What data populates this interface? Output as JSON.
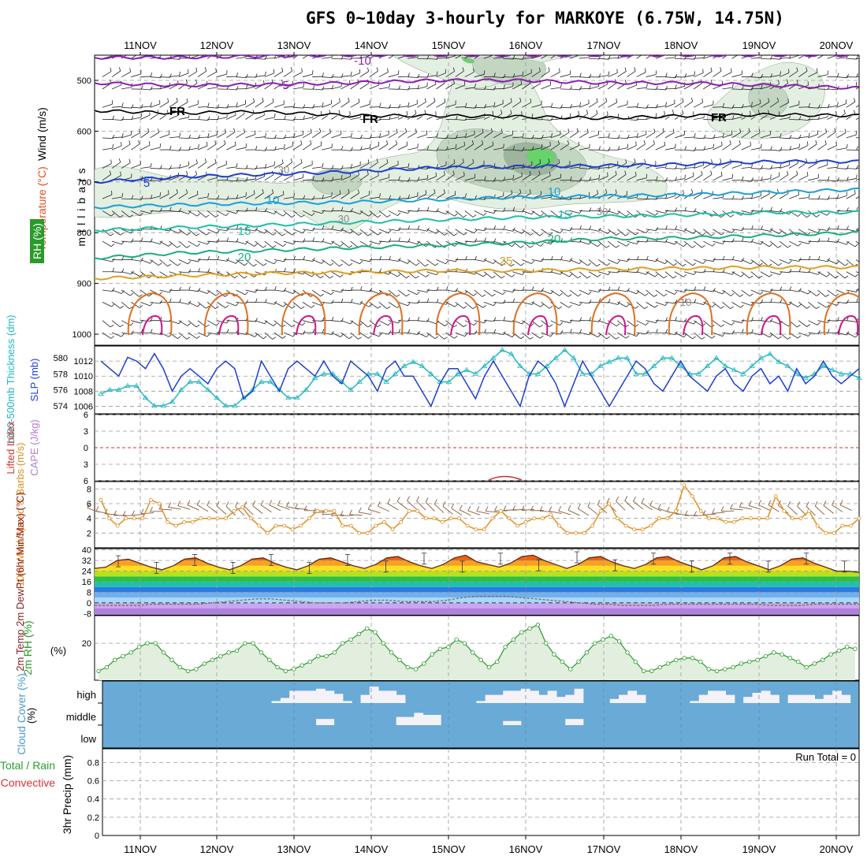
{
  "title": "GFS 0~10day 3-hourly for MARKOYE (6.75W, 14.75N)",
  "run_total_label": "Run Total = 0",
  "colors": {
    "rh_light": "#e3efe1",
    "rh_mid": "#c3d6c2",
    "rh_dark": "#9db49d",
    "rh_green": "#67d36a",
    "t_minus10": "#8a1fb3",
    "t_minus5": "#8a1fb3",
    "t_fr": "#000000",
    "t_5": "#1f3fcf",
    "t_10": "#1aa0d8",
    "t_15": "#1cc0a8",
    "t_20": "#19b07a",
    "t_25": "#e0a020",
    "t_30": "#e07020",
    "t_35": "#d0148a",
    "slp": "#1f3fcf",
    "thickness": "#20b8c0",
    "lifted": "#d03030",
    "cape": "#b080d0",
    "wind": "#e09020",
    "barb": "#8b5a3c",
    "rh2m": "#2a9a2a",
    "cloud_bg": "#6aaad6",
    "cloud_fill": "#f4f2f8"
  },
  "chart_data": [
    {
      "panel": "upper-air",
      "type": "heatmap",
      "ylabel": "millibars",
      "ylabel_parts": [
        "Wind (m/s)",
        "Temperature (°C)",
        "RH (%)"
      ],
      "y_ticks": [
        500,
        600,
        700,
        800,
        900,
        1000
      ],
      "ylim": [
        450,
        1000
      ],
      "x_ticks": [
        "11NOV",
        "12NOV",
        "13NOV",
        "14NOV",
        "15NOV",
        "16NOV",
        "17NOV",
        "18NOV",
        "19NOV",
        "20NOV"
      ],
      "contour_labels": [
        "-10",
        "-5",
        "FR",
        "FR",
        "FR",
        "5",
        "10",
        "10",
        "15",
        "15",
        "20",
        "20",
        "25",
        "30",
        "30",
        "30",
        "10"
      ],
      "isotherms": [
        {
          "name": "-10",
          "level": [
            455,
            455,
            452,
            450,
            450,
            450,
            450,
            450,
            450,
            450
          ]
        },
        {
          "name": "-5",
          "level": [
            505,
            510,
            508,
            505,
            500,
            500,
            505,
            505,
            510,
            515
          ]
        },
        {
          "name": "FR",
          "level": [
            560,
            565,
            562,
            570,
            570,
            572,
            575,
            570,
            568,
            570
          ]
        },
        {
          "name": "5",
          "level": [
            700,
            690,
            685,
            680,
            672,
            670,
            668,
            665,
            660,
            660
          ]
        },
        {
          "name": "10",
          "level": [
            750,
            745,
            742,
            740,
            735,
            730,
            728,
            725,
            720,
            715
          ]
        },
        {
          "name": "15",
          "level": [
            795,
            790,
            785,
            780,
            775,
            770,
            768,
            765,
            760,
            760
          ]
        },
        {
          "name": "20",
          "level": [
            850,
            840,
            835,
            830,
            825,
            820,
            812,
            810,
            805,
            800
          ]
        },
        {
          "name": "25",
          "level": [
            890,
            885,
            880,
            878,
            875,
            875,
            872,
            870,
            868,
            868
          ]
        }
      ]
    },
    {
      "panel": "slp-thickness",
      "type": "line",
      "ylabel_left": "1000-500mb Thickness (dm)",
      "ylabel_right": "SLP (mb)",
      "thickness_ticks": [
        574,
        576,
        578,
        580
      ],
      "slp_ticks": [
        1006,
        1008,
        1010,
        1012
      ],
      "slp_ylim": [
        1005,
        1014
      ],
      "thickness_ylim": [
        573,
        581.5
      ],
      "slp": [
        1012,
        1011,
        1010,
        1012.5,
        1012,
        1011,
        1013,
        1011,
        1008,
        1010,
        1011,
        1010,
        1009,
        1011,
        1012,
        1011,
        1007,
        1008,
        1012,
        1010,
        1008,
        1011,
        1012,
        1011,
        1010,
        1012,
        1010,
        1009,
        1012,
        1011,
        1010,
        1008,
        1011,
        1012,
        1010,
        1010,
        1008,
        1006,
        1009,
        1011,
        1011,
        1009,
        1007,
        1010,
        1012,
        1010,
        1008,
        1006,
        1010,
        1012,
        1011,
        1009,
        1006,
        1009,
        1012,
        1010,
        1008,
        1006,
        1008,
        1010,
        1012,
        1011,
        1009,
        1008,
        1010,
        1012,
        1010,
        1009,
        1008,
        1010,
        1011,
        1009,
        1008,
        1010,
        1011,
        1009,
        1010,
        1008,
        1011,
        1009,
        1010,
        1012,
        1010,
        1009,
        1010,
        1011
      ],
      "thickness": [
        575.5,
        576,
        576,
        576.5,
        576.5,
        575,
        574,
        574,
        574.5,
        576,
        577,
        577,
        576,
        575,
        574,
        574,
        575,
        576,
        577,
        577,
        576,
        575,
        575,
        576,
        577.5,
        578,
        578,
        577,
        576,
        577,
        578,
        578,
        577,
        578,
        579,
        579.5,
        579,
        578,
        577,
        577,
        578,
        578.5,
        578,
        579,
        580,
        581,
        580.5,
        579,
        578,
        578,
        579,
        580,
        581,
        580,
        578,
        578,
        579,
        579.5,
        580,
        580,
        578,
        578,
        579,
        580,
        580,
        579,
        578,
        578,
        579,
        580,
        579,
        578.5,
        578,
        579,
        580,
        580.5,
        579.5,
        579,
        578,
        577.5,
        578,
        579,
        578.5,
        578,
        578,
        577.5
      ]
    },
    {
      "panel": "lifted-cape",
      "type": "line",
      "ylabel_left": "Lifted Index",
      "ylabel_right": "CAPE (J/kg)",
      "y_ticks": [
        6,
        3,
        0,
        -3,
        -6
      ],
      "ylim": [
        -6,
        6
      ]
    },
    {
      "panel": "wind10m",
      "type": "line",
      "ylabel": "10m Wind Speed & Barbs (m/s)",
      "y_ticks": [
        2,
        4,
        6,
        8
      ],
      "ylim": [
        0,
        9
      ],
      "values": [
        6.5,
        4,
        3,
        4,
        4,
        4,
        6.5,
        6,
        3.5,
        3,
        3.5,
        3.5,
        4,
        4,
        4,
        4,
        5,
        5.5,
        4,
        3,
        2,
        3,
        3,
        2.5,
        3,
        4,
        5,
        5,
        5,
        3,
        3,
        2,
        2,
        3,
        3.5,
        2.5,
        3.5,
        5,
        5,
        4,
        4,
        3.5,
        4,
        4,
        3,
        2.5,
        2.5,
        4,
        5,
        4,
        3,
        3.5,
        4,
        4,
        4.5,
        3,
        2,
        2,
        2,
        3,
        5,
        6,
        4,
        3,
        2.5,
        2.5,
        3,
        4,
        4,
        5,
        8.5,
        7,
        5,
        4,
        4,
        3.5,
        3.5,
        4,
        4,
        4,
        4,
        7,
        5,
        4,
        4,
        5,
        3,
        2,
        2,
        3,
        3,
        4
      ]
    },
    {
      "panel": "temp2m",
      "type": "area",
      "ylabel": "2m Temp 2m DewPt (6hr Min/Max) (°C)",
      "y_ticks": [
        -8,
        0,
        8,
        16,
        24,
        32,
        40
      ],
      "ylim": [
        -9,
        41
      ],
      "temp": [
        26,
        27,
        32,
        33,
        30,
        27,
        25,
        28,
        33,
        34,
        30,
        27,
        25,
        28,
        33,
        34,
        30,
        27,
        25,
        28,
        33,
        34,
        31,
        28,
        26,
        29,
        34,
        35,
        31,
        28,
        26,
        29,
        34,
        36,
        31,
        29,
        27,
        30,
        35,
        36,
        32,
        29,
        26,
        29,
        34,
        35,
        31,
        28,
        26,
        29,
        34,
        35,
        31,
        28,
        25,
        28,
        34,
        35,
        31,
        28,
        25,
        28,
        33,
        34,
        30,
        27,
        24,
        24,
        23
      ],
      "dewpoint": [
        -2,
        -2,
        -2,
        -2,
        -1,
        -1,
        -1,
        -1,
        0,
        1,
        2,
        3,
        3,
        2,
        1,
        0,
        0,
        0,
        1,
        2,
        2,
        1,
        1,
        1,
        2,
        4,
        5,
        5,
        5,
        4,
        3,
        2,
        1,
        0,
        -1,
        -1,
        -2,
        -2,
        -2,
        -1,
        -1,
        -1,
        -1,
        -1,
        -1,
        -1,
        -2,
        -2,
        -2,
        -1,
        -1,
        -1,
        -1
      ]
    },
    {
      "panel": "rh2m",
      "type": "area",
      "ylabel": "2m RH (%)",
      "y_ticks": [
        20
      ],
      "ylim": [
        0,
        35
      ],
      "values": [
        5,
        7,
        11,
        13,
        15,
        18,
        20,
        20,
        15,
        11,
        7,
        5,
        6,
        9,
        11,
        13,
        15,
        16,
        20,
        20,
        15,
        11,
        7,
        5,
        6,
        8,
        10,
        13,
        13,
        15,
        20,
        22,
        25,
        28,
        26,
        20,
        15,
        11,
        7,
        6,
        9,
        14,
        17,
        18,
        22,
        20,
        15,
        11,
        7,
        10,
        18,
        22,
        26,
        28,
        30,
        20,
        14,
        10,
        6,
        10,
        15,
        20,
        22,
        24,
        21,
        15,
        10,
        5,
        5,
        7,
        9,
        11,
        12,
        12,
        10,
        6,
        5,
        6,
        7,
        9,
        10,
        11,
        13,
        15,
        14,
        12,
        10,
        7,
        9,
        11,
        14,
        16,
        18,
        17
      ]
    },
    {
      "panel": "cloud",
      "type": "heatmap",
      "ylabel": "Cloud Cover (%)",
      "row_labels": [
        "high",
        "middle",
        "low"
      ],
      "high": [
        0,
        0,
        0,
        0,
        0,
        0,
        0,
        0,
        0,
        0,
        0,
        0,
        0,
        0,
        0,
        0,
        0,
        0,
        0,
        10,
        25,
        60,
        60,
        60,
        70,
        60,
        45,
        10,
        0,
        40,
        80,
        60,
        60,
        40,
        0,
        0,
        0,
        0,
        0,
        0,
        0,
        0,
        10,
        40,
        40,
        60,
        60,
        70,
        60,
        40,
        60,
        30,
        40,
        70,
        0,
        0,
        0,
        20,
        40,
        60,
        40,
        0,
        0,
        0,
        0,
        0,
        10,
        40,
        60,
        60,
        40,
        0,
        30,
        50,
        60,
        40,
        0,
        40,
        40,
        40,
        20,
        40,
        60,
        40,
        0
      ],
      "middle": [
        0,
        0,
        0,
        0,
        0,
        0,
        0,
        0,
        0,
        0,
        0,
        0,
        0,
        0,
        0,
        0,
        0,
        0,
        0,
        0,
        0,
        0,
        0,
        0,
        30,
        30,
        0,
        0,
        0,
        0,
        0,
        0,
        0,
        40,
        40,
        60,
        50,
        50,
        0,
        0,
        0,
        0,
        0,
        0,
        0,
        20,
        20,
        0,
        0,
        0,
        0,
        0,
        30,
        30,
        0,
        0,
        0,
        0,
        0,
        0,
        0,
        0,
        0,
        0,
        0,
        0,
        0,
        0,
        0,
        0,
        0,
        0,
        0,
        0,
        0,
        0,
        0,
        0,
        0,
        0,
        0,
        0,
        0,
        0,
        0,
        0,
        0
      ],
      "low": []
    },
    {
      "panel": "precip",
      "type": "bar",
      "ylabel": "3hr Precip (mm)",
      "ylabel_left": [
        "Total / Rain",
        "Convective"
      ],
      "y_ticks": [
        0,
        0.2,
        0.4,
        0.6,
        0.8
      ],
      "ylim": [
        0,
        0.95
      ],
      "values": []
    }
  ]
}
